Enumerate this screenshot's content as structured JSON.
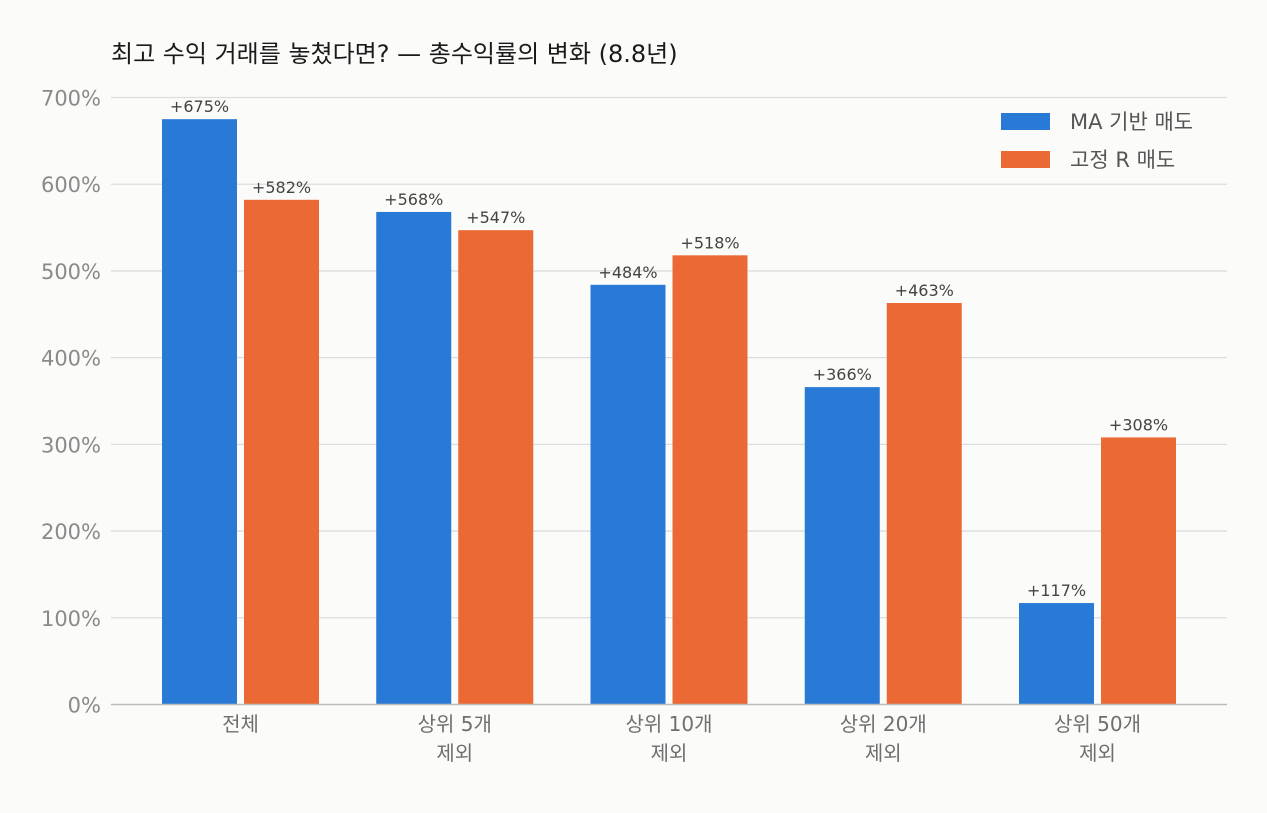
{
  "chart_data": {
    "type": "bar",
    "title": "최고 수익 거래를 놓쳤다면? — 총수익률의 변화 (8.8년)",
    "xlabel": "",
    "ylabel": "",
    "categories": [
      [
        "전체"
      ],
      [
        "상위 5개",
        "제외"
      ],
      [
        "상위 10개",
        "제외"
      ],
      [
        "상위 20개",
        "제외"
      ],
      [
        "상위 50개",
        "제외"
      ]
    ],
    "series": [
      {
        "name": "MA 기반 매도",
        "color": "#2979d6",
        "values": [
          675,
          568,
          484,
          366,
          117
        ],
        "labels": [
          "+675%",
          "+568%",
          "+484%",
          "+366%",
          "+117%"
        ]
      },
      {
        "name": "고정 R 매도",
        "color": "#ea6935",
        "values": [
          582,
          547,
          518,
          463,
          308
        ],
        "labels": [
          "+582%",
          "+547%",
          "+518%",
          "+463%",
          "+308%"
        ]
      }
    ],
    "ylim": [
      0,
      700
    ],
    "yticks": [
      0,
      100,
      200,
      300,
      400,
      500,
      600,
      700
    ],
    "ytick_labels": [
      "0%",
      "100%",
      "200%",
      "300%",
      "400%",
      "500%",
      "600%",
      "700%"
    ],
    "grid": true,
    "legend": "top-right"
  }
}
